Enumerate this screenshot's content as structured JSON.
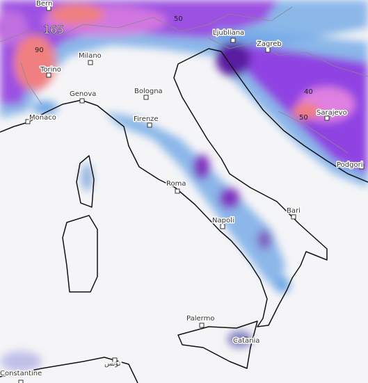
{
  "cities": [
    "Bern",
    "Milano",
    "Torino",
    "Genova",
    "Bologna",
    "Monaco",
    "Firenze",
    "Ljubliana",
    "Zagreb",
    "Sarajevo",
    "Podgori",
    "Roma",
    "Bari",
    "Napoli",
    "Palermo",
    "Catania",
    "Constantine",
    "تونس"
  ],
  "contour_labels": [
    "165",
    "90",
    "50",
    "40",
    "50"
  ]
}
